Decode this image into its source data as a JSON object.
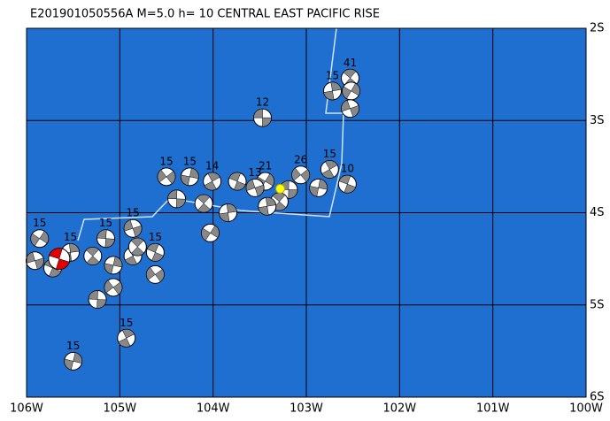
{
  "map": {
    "title": "E201901050556A M=5.0 h= 10 CENTRAL EAST PACIFIC RISE",
    "xlim": [
      -106,
      -100
    ],
    "ylim": [
      -6,
      -2
    ],
    "xticks": [
      {
        "value": -106,
        "label": "106W"
      },
      {
        "value": -105,
        "label": "105W"
      },
      {
        "value": -104,
        "label": "104W"
      },
      {
        "value": -103,
        "label": "103W"
      },
      {
        "value": -102,
        "label": "102W"
      },
      {
        "value": -101,
        "label": "101W"
      },
      {
        "value": -100,
        "label": "100W"
      }
    ],
    "yticks": [
      {
        "value": -2,
        "label": "2S"
      },
      {
        "value": -3,
        "label": "3S"
      },
      {
        "value": -4,
        "label": "4S"
      },
      {
        "value": -5,
        "label": "5S"
      },
      {
        "value": -6,
        "label": "6S"
      }
    ],
    "main_event": {
      "lon": -105.65,
      "lat": -4.5
    },
    "epicenter": {
      "lon": -103.28,
      "lat": -3.74
    },
    "events": [
      {
        "lon": -103.47,
        "lat": -2.97,
        "label": "12"
      },
      {
        "lon": -102.53,
        "lat": -2.54,
        "label": "41"
      },
      {
        "lon": -102.72,
        "lat": -2.68,
        "label": "15"
      },
      {
        "lon": -102.52,
        "lat": -2.68
      },
      {
        "lon": -102.53,
        "lat": -2.87
      },
      {
        "lon": -102.56,
        "lat": -3.69,
        "label": "10"
      },
      {
        "lon": -102.75,
        "lat": -3.53,
        "label": "15"
      },
      {
        "lon": -102.87,
        "lat": -3.73
      },
      {
        "lon": -103.06,
        "lat": -3.59,
        "label": "26"
      },
      {
        "lon": -103.19,
        "lat": -3.75
      },
      {
        "lon": -103.29,
        "lat": -3.88
      },
      {
        "lon": -103.42,
        "lat": -3.93
      },
      {
        "lon": -103.44,
        "lat": -3.66,
        "label": "21"
      },
      {
        "lon": -103.55,
        "lat": -3.73,
        "label": "13"
      },
      {
        "lon": -103.74,
        "lat": -3.66
      },
      {
        "lon": -104.01,
        "lat": -3.66,
        "label": "14"
      },
      {
        "lon": -104.25,
        "lat": -3.61,
        "label": "15"
      },
      {
        "lon": -104.5,
        "lat": -3.61,
        "label": "15"
      },
      {
        "lon": -104.39,
        "lat": -3.85
      },
      {
        "lon": -104.1,
        "lat": -3.9
      },
      {
        "lon": -103.84,
        "lat": -4.0
      },
      {
        "lon": -104.03,
        "lat": -4.22
      },
      {
        "lon": -104.86,
        "lat": -4.17,
        "label": "15"
      },
      {
        "lon": -104.62,
        "lat": -4.43,
        "label": "15"
      },
      {
        "lon": -104.86,
        "lat": -4.47
      },
      {
        "lon": -105.07,
        "lat": -4.57
      },
      {
        "lon": -105.07,
        "lat": -4.81
      },
      {
        "lon": -105.24,
        "lat": -4.94
      },
      {
        "lon": -105.29,
        "lat": -4.47
      },
      {
        "lon": -105.53,
        "lat": -4.43,
        "label": "15"
      },
      {
        "lon": -105.86,
        "lat": -4.28,
        "label": "15"
      },
      {
        "lon": -105.91,
        "lat": -4.52
      },
      {
        "lon": -105.72,
        "lat": -4.6
      },
      {
        "lon": -104.93,
        "lat": -5.36,
        "label": "15"
      },
      {
        "lon": -105.5,
        "lat": -5.61,
        "label": "15"
      },
      {
        "lon": -104.62,
        "lat": -4.67
      },
      {
        "lon": -105.15,
        "lat": -4.28,
        "label": "15"
      },
      {
        "lon": -104.81,
        "lat": -4.37
      }
    ]
  }
}
